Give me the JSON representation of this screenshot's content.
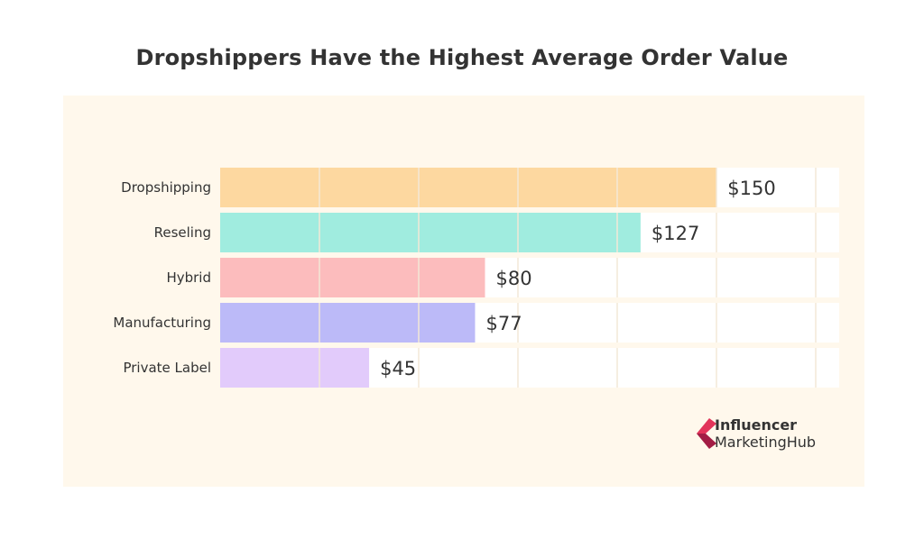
{
  "chart_data": {
    "type": "bar",
    "orientation": "horizontal",
    "title": "Dropshippers Have the Highest Average Order Value",
    "categories": [
      "Dropshipping",
      "Reseling",
      "Hybrid",
      "Manufacturing",
      "Private Label"
    ],
    "values": [
      150,
      127,
      80,
      77,
      45
    ],
    "value_labels": [
      "$150",
      "$127",
      "$80",
      "$77",
      "$45"
    ],
    "xlim": [
      0,
      187
    ],
    "grid": true,
    "colors": [
      "#fdd8a0",
      "#a0ecdf",
      "#fcbcbd",
      "#bcbaf8",
      "#e2cbfb"
    ]
  },
  "brand": {
    "line1": "Influencer",
    "line2": "MarketingHub",
    "icon": "influencer-marketing-hub-logo-icon",
    "colors": [
      "#e2345a",
      "#a31d45"
    ]
  },
  "theme": {
    "panel_background": "#fff8ec",
    "track_color": "#ffffff",
    "grid_color": "#f3e8d7",
    "text_color": "#333333"
  }
}
